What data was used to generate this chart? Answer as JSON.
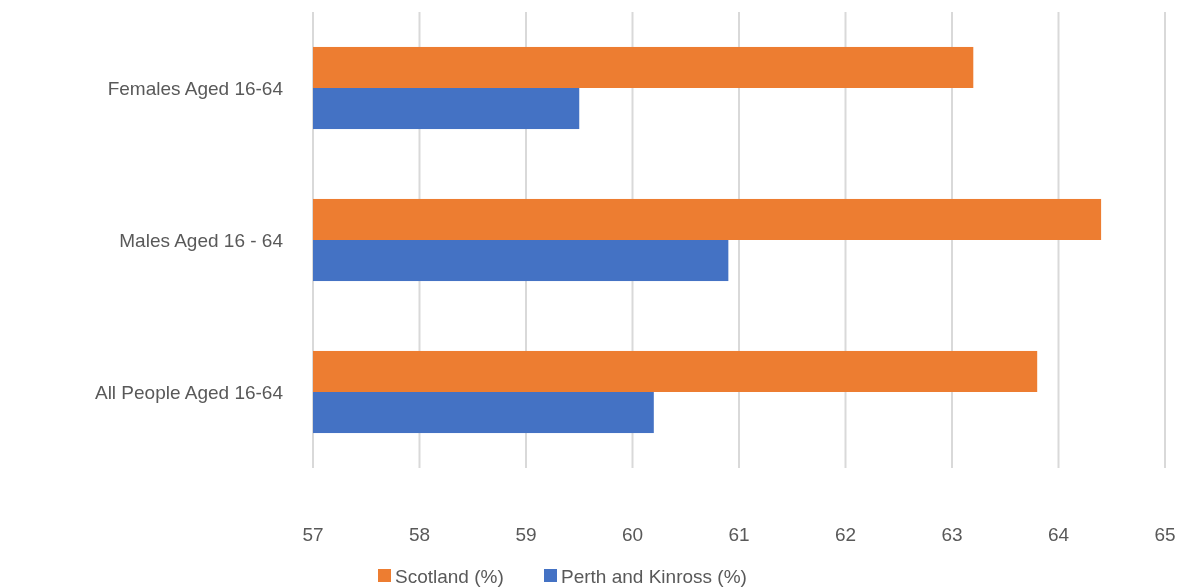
{
  "chart_data": {
    "type": "bar",
    "orientation": "horizontal",
    "categories": [
      "Females Aged 16-64",
      "Males Aged 16 - 64",
      "All People Aged 16-64"
    ],
    "series": [
      {
        "name": "Scotland (%)",
        "color": "#ed7d31",
        "values": [
          63.2,
          64.4,
          63.8
        ]
      },
      {
        "name": "Perth and Kinross (%)",
        "color": "#4472c4",
        "values": [
          59.5,
          60.9,
          60.2
        ]
      }
    ],
    "xlim": [
      57,
      65
    ],
    "xticks": [
      57,
      58,
      59,
      60,
      61,
      62,
      63,
      64,
      65
    ],
    "grid": "x",
    "legend": "bottom"
  }
}
